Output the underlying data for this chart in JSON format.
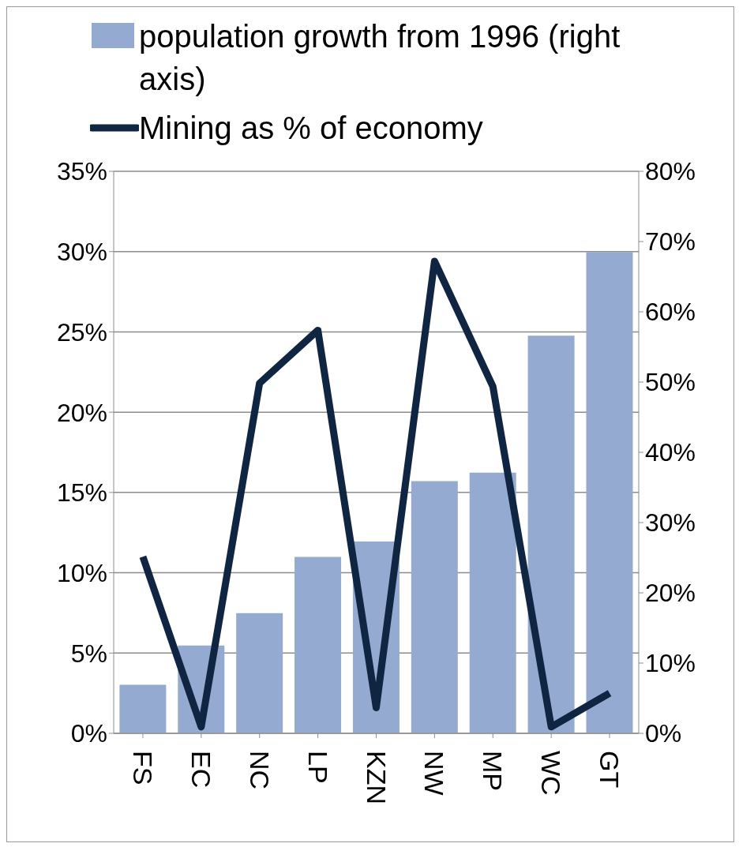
{
  "chart_data": {
    "type": "bar",
    "categories": [
      "FS",
      "EC",
      "NC",
      "LP",
      "KZN",
      "NW",
      "MP",
      "WC",
      "GT"
    ],
    "series": [
      {
        "name": "population growth from 1996 (right axis)",
        "axis": "y2",
        "color": "#95aad0",
        "values": [
          6.9,
          12.5,
          17.1,
          25.1,
          27.3,
          35.9,
          37.1,
          56.6,
          68.5
        ]
      },
      {
        "name": "Mining as % of economy",
        "type": "line",
        "color": "#0f2542",
        "values": [
          11.0,
          0.4,
          21.8,
          25.1,
          1.6,
          29.4,
          21.6,
          0.4,
          2.5
        ]
      }
    ],
    "ylim": [
      0,
      35
    ],
    "yticks": [
      {
        "value": 0,
        "label": "0%"
      },
      {
        "value": 5,
        "label": "5%"
      },
      {
        "value": 10,
        "label": "10%"
      },
      {
        "value": 15,
        "label": "15%"
      },
      {
        "value": 20,
        "label": "20%"
      },
      {
        "value": 25,
        "label": "25%"
      },
      {
        "value": 30,
        "label": "30%"
      },
      {
        "value": 35,
        "label": "35%"
      }
    ],
    "y2lim": [
      0,
      80
    ],
    "y2ticks": [
      {
        "value": 0,
        "label": "0%"
      },
      {
        "value": 10,
        "label": "10%"
      },
      {
        "value": 20,
        "label": "20%"
      },
      {
        "value": 30,
        "label": "30%"
      },
      {
        "value": 40,
        "label": "40%"
      },
      {
        "value": 50,
        "label": "50%"
      },
      {
        "value": 60,
        "label": "60%"
      },
      {
        "value": 70,
        "label": "70%"
      },
      {
        "value": 80,
        "label": "80%"
      }
    ],
    "grid": "y",
    "legend": "top",
    "marker": "none",
    "line_style": "solid"
  }
}
